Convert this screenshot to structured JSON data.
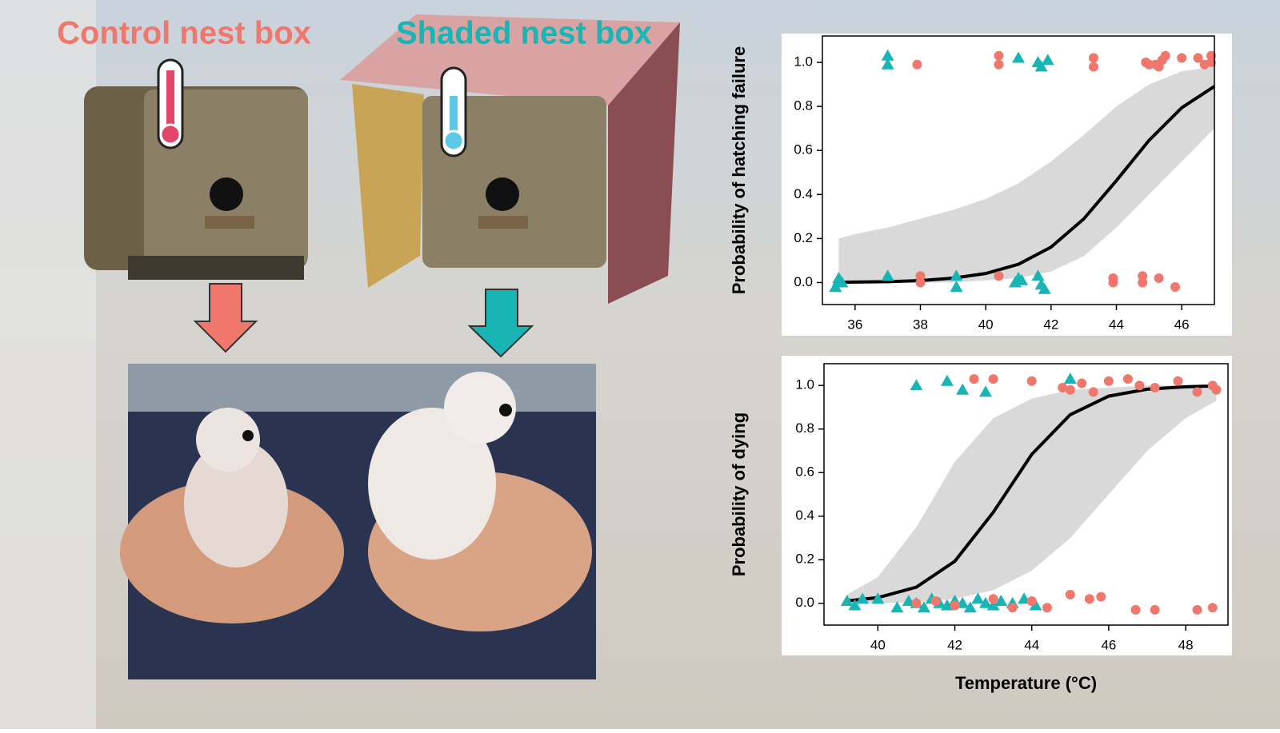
{
  "labels": {
    "control": "Control nest box",
    "shaded": "Shaded nest box"
  },
  "chart_data": [
    {
      "type": "scatter",
      "y_axis_label": "Probability of hatching failure",
      "xlim": [
        35,
        47
      ],
      "ylim": [
        -0.1,
        1.12
      ],
      "xticks": [
        36,
        38,
        40,
        42,
        44,
        46
      ],
      "yticks": [
        {
          "value": 0,
          "label": "0.0"
        },
        0.2,
        0.4,
        0.6,
        0.8,
        {
          "value": 1,
          "label": "1.0"
        }
      ],
      "band": {
        "color": "#d9d9d9",
        "x": [
          35.5,
          36,
          37,
          38,
          39,
          40,
          41,
          42,
          43,
          44,
          45,
          46,
          47
        ],
        "lower": [
          0,
          0,
          0,
          0,
          0,
          0.01,
          0.02,
          0.05,
          0.12,
          0.25,
          0.4,
          0.55,
          0.7
        ],
        "upper": [
          0.2,
          0.22,
          0.25,
          0.29,
          0.33,
          0.38,
          0.45,
          0.55,
          0.67,
          0.8,
          0.9,
          0.96,
          0.98
        ]
      },
      "series": [
        {
          "marker": "line",
          "color": "#000000",
          "x": [
            35.5,
            36,
            37,
            38,
            39,
            40,
            41,
            42,
            43,
            44,
            45,
            46,
            47
          ],
          "values": [
            0.001,
            0.002,
            0.004,
            0.009,
            0.02,
            0.041,
            0.083,
            0.161,
            0.289,
            0.463,
            0.646,
            0.794,
            0.891
          ]
        },
        {
          "marker": "triangle",
          "color": "#19b5b5",
          "x": [
            35.5,
            35.6,
            35.4,
            35.5,
            37,
            39.1,
            39.1,
            41,
            40.9,
            41.1,
            41.6,
            41.7,
            41.8,
            37,
            37,
            41,
            41.6,
            41.7,
            41.9
          ],
          "values": [
            0.02,
            0,
            -0.02,
            0.01,
            0.03,
            0.03,
            -0.02,
            0.02,
            0,
            0.01,
            0.03,
            -0.01,
            -0.03,
            1.03,
            0.99,
            1.02,
            1,
            0.98,
            1.01
          ]
        },
        {
          "marker": "circle",
          "color": "#f0776c",
          "x": [
            37.9,
            38,
            38,
            40.4,
            40.4,
            40.4,
            43.3,
            43.3,
            43.9,
            43.9,
            44.8,
            44.8,
            45.3,
            45.8,
            44.9,
            45.2,
            45.5,
            45.3,
            46,
            46.5,
            46.7,
            46.9,
            46.9,
            45,
            45.4
          ],
          "values": [
            0.99,
            0.03,
            0,
            1.03,
            0.99,
            0.03,
            1.02,
            0.98,
            0.02,
            0,
            0.03,
            0,
            0.02,
            -0.02,
            1,
            0.99,
            1.03,
            0.98,
            1.02,
            1.02,
            0.99,
            1.03,
            1.0,
            0.99,
            1.01
          ]
        }
      ]
    },
    {
      "type": "scatter",
      "y_axis_label": "Probability of dying",
      "x_axis_label": "Temperature (°C)",
      "xlim": [
        38.6,
        49.1
      ],
      "ylim": [
        -0.1,
        1.1
      ],
      "xticks": [
        40,
        42,
        44,
        46,
        48
      ],
      "yticks": [
        {
          "value": 0,
          "label": "0.0"
        },
        0.2,
        0.4,
        0.6,
        0.8,
        {
          "value": 1,
          "label": "1.0"
        }
      ],
      "band": {
        "color": "#d9d9d9",
        "x": [
          39.2,
          40,
          41,
          42,
          43,
          44,
          45,
          46,
          47,
          48,
          48.8
        ],
        "lower": [
          0,
          0,
          0.005,
          0.02,
          0.06,
          0.15,
          0.3,
          0.5,
          0.7,
          0.85,
          0.93
        ],
        "upper": [
          0.04,
          0.12,
          0.35,
          0.65,
          0.85,
          0.94,
          0.98,
          0.99,
          1,
          1,
          1
        ]
      },
      "series": [
        {
          "marker": "line",
          "color": "#000000",
          "x": [
            39.2,
            40,
            41,
            42,
            43,
            44,
            45,
            46,
            47,
            48,
            48.8
          ],
          "values": [
            0.011,
            0.026,
            0.074,
            0.193,
            0.418,
            0.684,
            0.866,
            0.951,
            0.983,
            0.994,
            0.998
          ]
        },
        {
          "marker": "triangle",
          "color": "#19b5b5",
          "x": [
            39.2,
            39.4,
            39.6,
            40,
            40.5,
            40.8,
            41,
            41.2,
            41.4,
            41.6,
            41.8,
            42,
            42.2,
            42.4,
            42.6,
            42.8,
            43,
            43.2,
            43.5,
            43.8,
            44.1,
            41,
            41.8,
            42.2,
            42.8,
            45
          ],
          "values": [
            0.01,
            -0.01,
            0.02,
            0.02,
            -0.02,
            0.01,
            0,
            -0.02,
            0.02,
            0,
            -0.01,
            0.01,
            0,
            -0.02,
            0.02,
            0,
            -0.01,
            0.01,
            0,
            0.02,
            -0.01,
            1,
            1.02,
            0.98,
            0.97,
            1.03
          ]
        },
        {
          "marker": "circle",
          "color": "#f0776c",
          "x": [
            41,
            41.5,
            42,
            43,
            43.5,
            44,
            44.4,
            45,
            45.5,
            45.8,
            46.7,
            47.2,
            48.3,
            48.7,
            42.5,
            43,
            44,
            44.8,
            45,
            45.3,
            45.6,
            46,
            46.5,
            46.8,
            47.2,
            47.8,
            48.3,
            48.7,
            48.8
          ],
          "values": [
            0,
            0.01,
            -0.01,
            0.02,
            -0.02,
            0.01,
            -0.02,
            0.04,
            0.02,
            0.03,
            -0.03,
            -0.03,
            -0.03,
            -0.02,
            1.03,
            1.03,
            1.02,
            0.99,
            0.98,
            1.01,
            0.97,
            1.02,
            1.03,
            1,
            0.99,
            1.02,
            0.97,
            1.0,
            0.98
          ]
        }
      ]
    }
  ]
}
